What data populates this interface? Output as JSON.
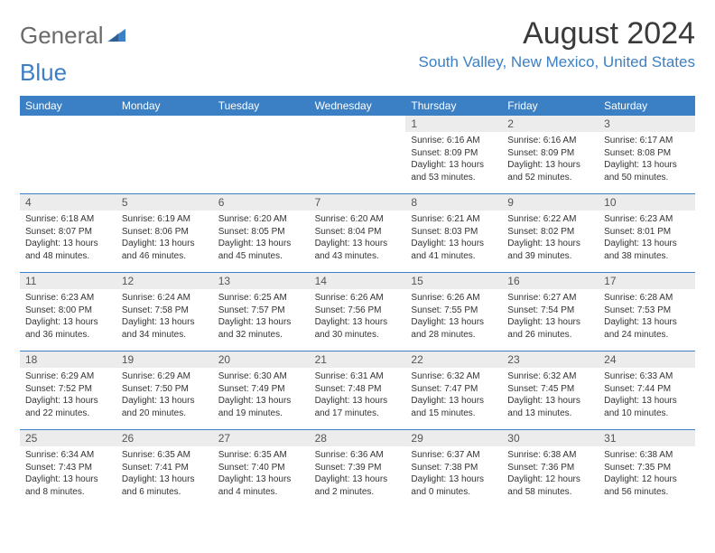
{
  "logo": {
    "grey": "General",
    "blue": "Blue"
  },
  "title": "August 2024",
  "location": "South Valley, New Mexico, United States",
  "colors": {
    "header_bg": "#3b7fc4",
    "header_text": "#ffffff",
    "daynum_bg": "#ececec",
    "border": "#3b7fc4",
    "logo_grey": "#6a6a6a",
    "logo_blue": "#3b7fc4"
  },
  "day_names": [
    "Sunday",
    "Monday",
    "Tuesday",
    "Wednesday",
    "Thursday",
    "Friday",
    "Saturday"
  ],
  "weeks": [
    [
      null,
      null,
      null,
      null,
      {
        "n": "1",
        "sr": "Sunrise: 6:16 AM",
        "ss": "Sunset: 8:09 PM",
        "d1": "Daylight: 13 hours",
        "d2": "and 53 minutes."
      },
      {
        "n": "2",
        "sr": "Sunrise: 6:16 AM",
        "ss": "Sunset: 8:09 PM",
        "d1": "Daylight: 13 hours",
        "d2": "and 52 minutes."
      },
      {
        "n": "3",
        "sr": "Sunrise: 6:17 AM",
        "ss": "Sunset: 8:08 PM",
        "d1": "Daylight: 13 hours",
        "d2": "and 50 minutes."
      }
    ],
    [
      {
        "n": "4",
        "sr": "Sunrise: 6:18 AM",
        "ss": "Sunset: 8:07 PM",
        "d1": "Daylight: 13 hours",
        "d2": "and 48 minutes."
      },
      {
        "n": "5",
        "sr": "Sunrise: 6:19 AM",
        "ss": "Sunset: 8:06 PM",
        "d1": "Daylight: 13 hours",
        "d2": "and 46 minutes."
      },
      {
        "n": "6",
        "sr": "Sunrise: 6:20 AM",
        "ss": "Sunset: 8:05 PM",
        "d1": "Daylight: 13 hours",
        "d2": "and 45 minutes."
      },
      {
        "n": "7",
        "sr": "Sunrise: 6:20 AM",
        "ss": "Sunset: 8:04 PM",
        "d1": "Daylight: 13 hours",
        "d2": "and 43 minutes."
      },
      {
        "n": "8",
        "sr": "Sunrise: 6:21 AM",
        "ss": "Sunset: 8:03 PM",
        "d1": "Daylight: 13 hours",
        "d2": "and 41 minutes."
      },
      {
        "n": "9",
        "sr": "Sunrise: 6:22 AM",
        "ss": "Sunset: 8:02 PM",
        "d1": "Daylight: 13 hours",
        "d2": "and 39 minutes."
      },
      {
        "n": "10",
        "sr": "Sunrise: 6:23 AM",
        "ss": "Sunset: 8:01 PM",
        "d1": "Daylight: 13 hours",
        "d2": "and 38 minutes."
      }
    ],
    [
      {
        "n": "11",
        "sr": "Sunrise: 6:23 AM",
        "ss": "Sunset: 8:00 PM",
        "d1": "Daylight: 13 hours",
        "d2": "and 36 minutes."
      },
      {
        "n": "12",
        "sr": "Sunrise: 6:24 AM",
        "ss": "Sunset: 7:58 PM",
        "d1": "Daylight: 13 hours",
        "d2": "and 34 minutes."
      },
      {
        "n": "13",
        "sr": "Sunrise: 6:25 AM",
        "ss": "Sunset: 7:57 PM",
        "d1": "Daylight: 13 hours",
        "d2": "and 32 minutes."
      },
      {
        "n": "14",
        "sr": "Sunrise: 6:26 AM",
        "ss": "Sunset: 7:56 PM",
        "d1": "Daylight: 13 hours",
        "d2": "and 30 minutes."
      },
      {
        "n": "15",
        "sr": "Sunrise: 6:26 AM",
        "ss": "Sunset: 7:55 PM",
        "d1": "Daylight: 13 hours",
        "d2": "and 28 minutes."
      },
      {
        "n": "16",
        "sr": "Sunrise: 6:27 AM",
        "ss": "Sunset: 7:54 PM",
        "d1": "Daylight: 13 hours",
        "d2": "and 26 minutes."
      },
      {
        "n": "17",
        "sr": "Sunrise: 6:28 AM",
        "ss": "Sunset: 7:53 PM",
        "d1": "Daylight: 13 hours",
        "d2": "and 24 minutes."
      }
    ],
    [
      {
        "n": "18",
        "sr": "Sunrise: 6:29 AM",
        "ss": "Sunset: 7:52 PM",
        "d1": "Daylight: 13 hours",
        "d2": "and 22 minutes."
      },
      {
        "n": "19",
        "sr": "Sunrise: 6:29 AM",
        "ss": "Sunset: 7:50 PM",
        "d1": "Daylight: 13 hours",
        "d2": "and 20 minutes."
      },
      {
        "n": "20",
        "sr": "Sunrise: 6:30 AM",
        "ss": "Sunset: 7:49 PM",
        "d1": "Daylight: 13 hours",
        "d2": "and 19 minutes."
      },
      {
        "n": "21",
        "sr": "Sunrise: 6:31 AM",
        "ss": "Sunset: 7:48 PM",
        "d1": "Daylight: 13 hours",
        "d2": "and 17 minutes."
      },
      {
        "n": "22",
        "sr": "Sunrise: 6:32 AM",
        "ss": "Sunset: 7:47 PM",
        "d1": "Daylight: 13 hours",
        "d2": "and 15 minutes."
      },
      {
        "n": "23",
        "sr": "Sunrise: 6:32 AM",
        "ss": "Sunset: 7:45 PM",
        "d1": "Daylight: 13 hours",
        "d2": "and 13 minutes."
      },
      {
        "n": "24",
        "sr": "Sunrise: 6:33 AM",
        "ss": "Sunset: 7:44 PM",
        "d1": "Daylight: 13 hours",
        "d2": "and 10 minutes."
      }
    ],
    [
      {
        "n": "25",
        "sr": "Sunrise: 6:34 AM",
        "ss": "Sunset: 7:43 PM",
        "d1": "Daylight: 13 hours",
        "d2": "and 8 minutes."
      },
      {
        "n": "26",
        "sr": "Sunrise: 6:35 AM",
        "ss": "Sunset: 7:41 PM",
        "d1": "Daylight: 13 hours",
        "d2": "and 6 minutes."
      },
      {
        "n": "27",
        "sr": "Sunrise: 6:35 AM",
        "ss": "Sunset: 7:40 PM",
        "d1": "Daylight: 13 hours",
        "d2": "and 4 minutes."
      },
      {
        "n": "28",
        "sr": "Sunrise: 6:36 AM",
        "ss": "Sunset: 7:39 PM",
        "d1": "Daylight: 13 hours",
        "d2": "and 2 minutes."
      },
      {
        "n": "29",
        "sr": "Sunrise: 6:37 AM",
        "ss": "Sunset: 7:38 PM",
        "d1": "Daylight: 13 hours",
        "d2": "and 0 minutes."
      },
      {
        "n": "30",
        "sr": "Sunrise: 6:38 AM",
        "ss": "Sunset: 7:36 PM",
        "d1": "Daylight: 12 hours",
        "d2": "and 58 minutes."
      },
      {
        "n": "31",
        "sr": "Sunrise: 6:38 AM",
        "ss": "Sunset: 7:35 PM",
        "d1": "Daylight: 12 hours",
        "d2": "and 56 minutes."
      }
    ]
  ]
}
